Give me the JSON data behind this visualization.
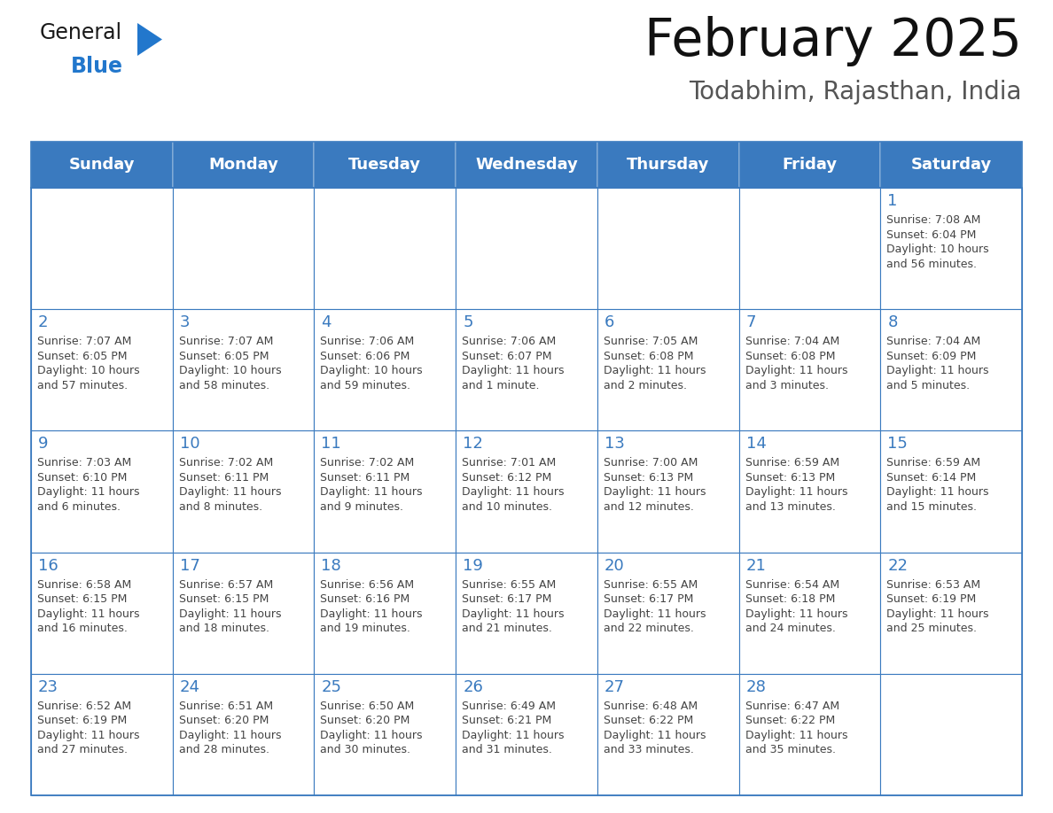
{
  "title": "February 2025",
  "subtitle": "Todabhim, Rajasthan, India",
  "header_color": "#3a7abf",
  "header_text_color": "#ffffff",
  "cell_bg_color": "#ffffff",
  "border_color": "#3a7abf",
  "text_color": "#444444",
  "day_num_color": "#3a7abf",
  "days_of_week": [
    "Sunday",
    "Monday",
    "Tuesday",
    "Wednesday",
    "Thursday",
    "Friday",
    "Saturday"
  ],
  "weeks": [
    [
      {
        "day": "",
        "info": ""
      },
      {
        "day": "",
        "info": ""
      },
      {
        "day": "",
        "info": ""
      },
      {
        "day": "",
        "info": ""
      },
      {
        "day": "",
        "info": ""
      },
      {
        "day": "",
        "info": ""
      },
      {
        "day": "1",
        "info": "Sunrise: 7:08 AM\nSunset: 6:04 PM\nDaylight: 10 hours\nand 56 minutes."
      }
    ],
    [
      {
        "day": "2",
        "info": "Sunrise: 7:07 AM\nSunset: 6:05 PM\nDaylight: 10 hours\nand 57 minutes."
      },
      {
        "day": "3",
        "info": "Sunrise: 7:07 AM\nSunset: 6:05 PM\nDaylight: 10 hours\nand 58 minutes."
      },
      {
        "day": "4",
        "info": "Sunrise: 7:06 AM\nSunset: 6:06 PM\nDaylight: 10 hours\nand 59 minutes."
      },
      {
        "day": "5",
        "info": "Sunrise: 7:06 AM\nSunset: 6:07 PM\nDaylight: 11 hours\nand 1 minute."
      },
      {
        "day": "6",
        "info": "Sunrise: 7:05 AM\nSunset: 6:08 PM\nDaylight: 11 hours\nand 2 minutes."
      },
      {
        "day": "7",
        "info": "Sunrise: 7:04 AM\nSunset: 6:08 PM\nDaylight: 11 hours\nand 3 minutes."
      },
      {
        "day": "8",
        "info": "Sunrise: 7:04 AM\nSunset: 6:09 PM\nDaylight: 11 hours\nand 5 minutes."
      }
    ],
    [
      {
        "day": "9",
        "info": "Sunrise: 7:03 AM\nSunset: 6:10 PM\nDaylight: 11 hours\nand 6 minutes."
      },
      {
        "day": "10",
        "info": "Sunrise: 7:02 AM\nSunset: 6:11 PM\nDaylight: 11 hours\nand 8 minutes."
      },
      {
        "day": "11",
        "info": "Sunrise: 7:02 AM\nSunset: 6:11 PM\nDaylight: 11 hours\nand 9 minutes."
      },
      {
        "day": "12",
        "info": "Sunrise: 7:01 AM\nSunset: 6:12 PM\nDaylight: 11 hours\nand 10 minutes."
      },
      {
        "day": "13",
        "info": "Sunrise: 7:00 AM\nSunset: 6:13 PM\nDaylight: 11 hours\nand 12 minutes."
      },
      {
        "day": "14",
        "info": "Sunrise: 6:59 AM\nSunset: 6:13 PM\nDaylight: 11 hours\nand 13 minutes."
      },
      {
        "day": "15",
        "info": "Sunrise: 6:59 AM\nSunset: 6:14 PM\nDaylight: 11 hours\nand 15 minutes."
      }
    ],
    [
      {
        "day": "16",
        "info": "Sunrise: 6:58 AM\nSunset: 6:15 PM\nDaylight: 11 hours\nand 16 minutes."
      },
      {
        "day": "17",
        "info": "Sunrise: 6:57 AM\nSunset: 6:15 PM\nDaylight: 11 hours\nand 18 minutes."
      },
      {
        "day": "18",
        "info": "Sunrise: 6:56 AM\nSunset: 6:16 PM\nDaylight: 11 hours\nand 19 minutes."
      },
      {
        "day": "19",
        "info": "Sunrise: 6:55 AM\nSunset: 6:17 PM\nDaylight: 11 hours\nand 21 minutes."
      },
      {
        "day": "20",
        "info": "Sunrise: 6:55 AM\nSunset: 6:17 PM\nDaylight: 11 hours\nand 22 minutes."
      },
      {
        "day": "21",
        "info": "Sunrise: 6:54 AM\nSunset: 6:18 PM\nDaylight: 11 hours\nand 24 minutes."
      },
      {
        "day": "22",
        "info": "Sunrise: 6:53 AM\nSunset: 6:19 PM\nDaylight: 11 hours\nand 25 minutes."
      }
    ],
    [
      {
        "day": "23",
        "info": "Sunrise: 6:52 AM\nSunset: 6:19 PM\nDaylight: 11 hours\nand 27 minutes."
      },
      {
        "day": "24",
        "info": "Sunrise: 6:51 AM\nSunset: 6:20 PM\nDaylight: 11 hours\nand 28 minutes."
      },
      {
        "day": "25",
        "info": "Sunrise: 6:50 AM\nSunset: 6:20 PM\nDaylight: 11 hours\nand 30 minutes."
      },
      {
        "day": "26",
        "info": "Sunrise: 6:49 AM\nSunset: 6:21 PM\nDaylight: 11 hours\nand 31 minutes."
      },
      {
        "day": "27",
        "info": "Sunrise: 6:48 AM\nSunset: 6:22 PM\nDaylight: 11 hours\nand 33 minutes."
      },
      {
        "day": "28",
        "info": "Sunrise: 6:47 AM\nSunset: 6:22 PM\nDaylight: 11 hours\nand 35 minutes."
      },
      {
        "day": "",
        "info": ""
      }
    ]
  ],
  "logo_general_color": "#1a1a1a",
  "logo_blue_color": "#2277cc",
  "logo_triangle_color": "#2277cc",
  "title_fontsize": 42,
  "subtitle_fontsize": 20,
  "dow_fontsize": 13,
  "day_num_fontsize": 13,
  "info_fontsize": 9
}
